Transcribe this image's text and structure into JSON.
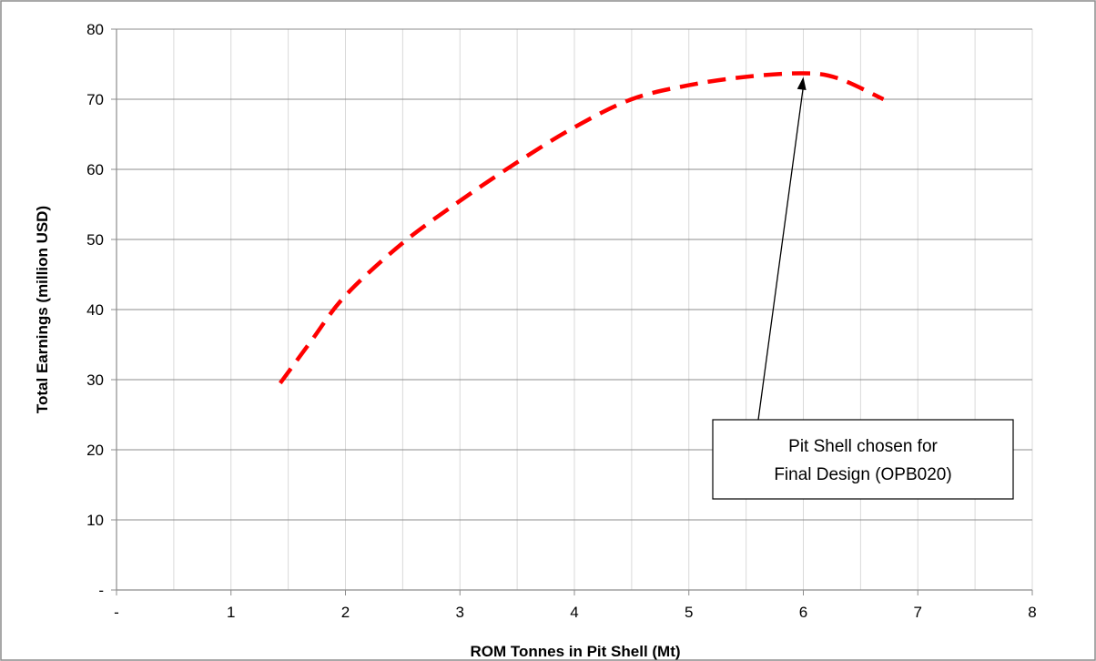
{
  "chart_data": {
    "type": "line",
    "title": "",
    "xlabel": "ROM Tonnes in Pit Shell (Mt)",
    "ylabel": "Total Earnings (million USD)",
    "xlim": [
      0,
      8
    ],
    "ylim": [
      0,
      80
    ],
    "x_ticks": [
      0,
      1,
      2,
      3,
      4,
      5,
      6,
      7,
      8
    ],
    "x_tick_labels": [
      "-",
      "1",
      "2",
      "3",
      "4",
      "5",
      "6",
      "7",
      "8"
    ],
    "y_ticks": [
      0,
      10,
      20,
      30,
      40,
      50,
      60,
      70,
      80
    ],
    "y_tick_labels": [
      "-",
      "10",
      "20",
      "30",
      "40",
      "50",
      "60",
      "70",
      "80"
    ],
    "grid": true,
    "legend": "none",
    "series": [
      {
        "color": "#ff0000",
        "style": "dashed",
        "x": [
          1.43,
          1.7,
          2.0,
          2.5,
          3.0,
          3.5,
          4.0,
          4.5,
          5.0,
          5.5,
          6.0,
          6.3,
          6.7
        ],
        "y": [
          29.5,
          35.5,
          42.0,
          49.5,
          55.5,
          61.0,
          66.0,
          70.0,
          72.0,
          73.2,
          73.7,
          73.0,
          70.0
        ]
      }
    ],
    "annotation": {
      "line1": "Pit Shell chosen for",
      "line2": "Final Design (OPB020)",
      "arrow_target": [
        6.0,
        73.7
      ]
    }
  }
}
